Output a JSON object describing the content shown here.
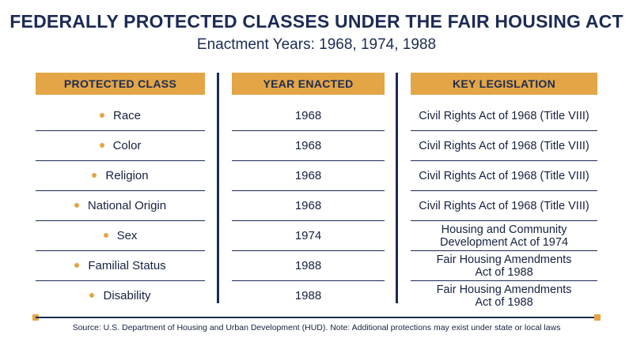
{
  "title": "FEDERALLY PROTECTED CLASSES UNDER THE FAIR HOUSING ACT",
  "subtitle": "Enactment Years: 1968, 1974, 1988",
  "headers": {
    "protected_class": "PROTECTED CLASS",
    "year_enacted": "YEAR ENACTED",
    "key_legislation": "KEY LEGISLATION"
  },
  "rows": [
    {
      "class": "Race",
      "year": "1968",
      "legislation_line1": "Civil Rights Act of 1968 (Title VIII)",
      "legislation_line2": ""
    },
    {
      "class": "Color",
      "year": "1968",
      "legislation_line1": "Civil Rights Act of 1968 (Title VIII)",
      "legislation_line2": ""
    },
    {
      "class": "Religion",
      "year": "1968",
      "legislation_line1": "Civil Rights Act of 1968 (Title VIII)",
      "legislation_line2": ""
    },
    {
      "class": "National Origin",
      "year": "1968",
      "legislation_line1": "Civil Rights Act of 1968 (Title VIII)",
      "legislation_line2": ""
    },
    {
      "class": "Sex",
      "year": "1974",
      "legislation_line1": "Housing and Community",
      "legislation_line2": "Development Act of 1974"
    },
    {
      "class": "Familial Status",
      "year": "1988",
      "legislation_line1": "Fair Housing Amendments",
      "legislation_line2": "Act of 1988"
    },
    {
      "class": "Disability",
      "year": "1988",
      "legislation_line1": "Fair Housing Amendments",
      "legislation_line2": "Act of 1988"
    }
  ],
  "source": "Source: U.S. Department of Housing and Urban Development (HUD). Note: Additional protections may exist under state or local laws",
  "colors": {
    "accent": "#e3a545",
    "navy": "#1c2b54"
  }
}
